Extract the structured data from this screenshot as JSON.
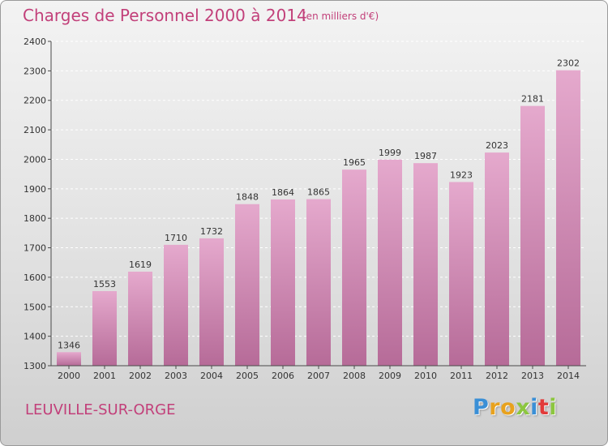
{
  "header": {
    "title": "Charges de Personnel 2000 à 2014",
    "subtitle": "(en milliers d'€)"
  },
  "footer": {
    "city": "LEUVILLE-SUR-ORGE",
    "logo_letters": [
      "P",
      "r",
      "o",
      "x",
      "i",
      "t",
      "i"
    ],
    "logo_colors": [
      "#3a8fd6",
      "#e8a21e",
      "#e8a21e",
      "#8cc63f",
      "#3a8fd6",
      "#e23a3a",
      "#8cc63f"
    ]
  },
  "colors": {
    "bar_top": "#e5a9cd",
    "bar_bottom": "#b66b98",
    "axis": "#4a4a4a",
    "grid": "#ffffff",
    "accent": "#c2407a"
  },
  "chart_data": {
    "type": "bar",
    "title": "Charges de Personnel 2000 à 2014",
    "subtitle": "(en milliers d'€)",
    "xlabel": "",
    "ylabel": "",
    "categories": [
      "2000",
      "2001",
      "2002",
      "2003",
      "2004",
      "2005",
      "2006",
      "2007",
      "2008",
      "2009",
      "2010",
      "2011",
      "2012",
      "2013",
      "2014"
    ],
    "values": [
      1346,
      1553,
      1619,
      1710,
      1732,
      1848,
      1864,
      1865,
      1965,
      1999,
      1987,
      1923,
      2023,
      2181,
      2302
    ],
    "ylim": [
      1300,
      2400
    ],
    "yticks": [
      1300,
      1400,
      1500,
      1600,
      1700,
      1800,
      1900,
      2000,
      2100,
      2200,
      2300,
      2400
    ],
    "grid": true
  }
}
